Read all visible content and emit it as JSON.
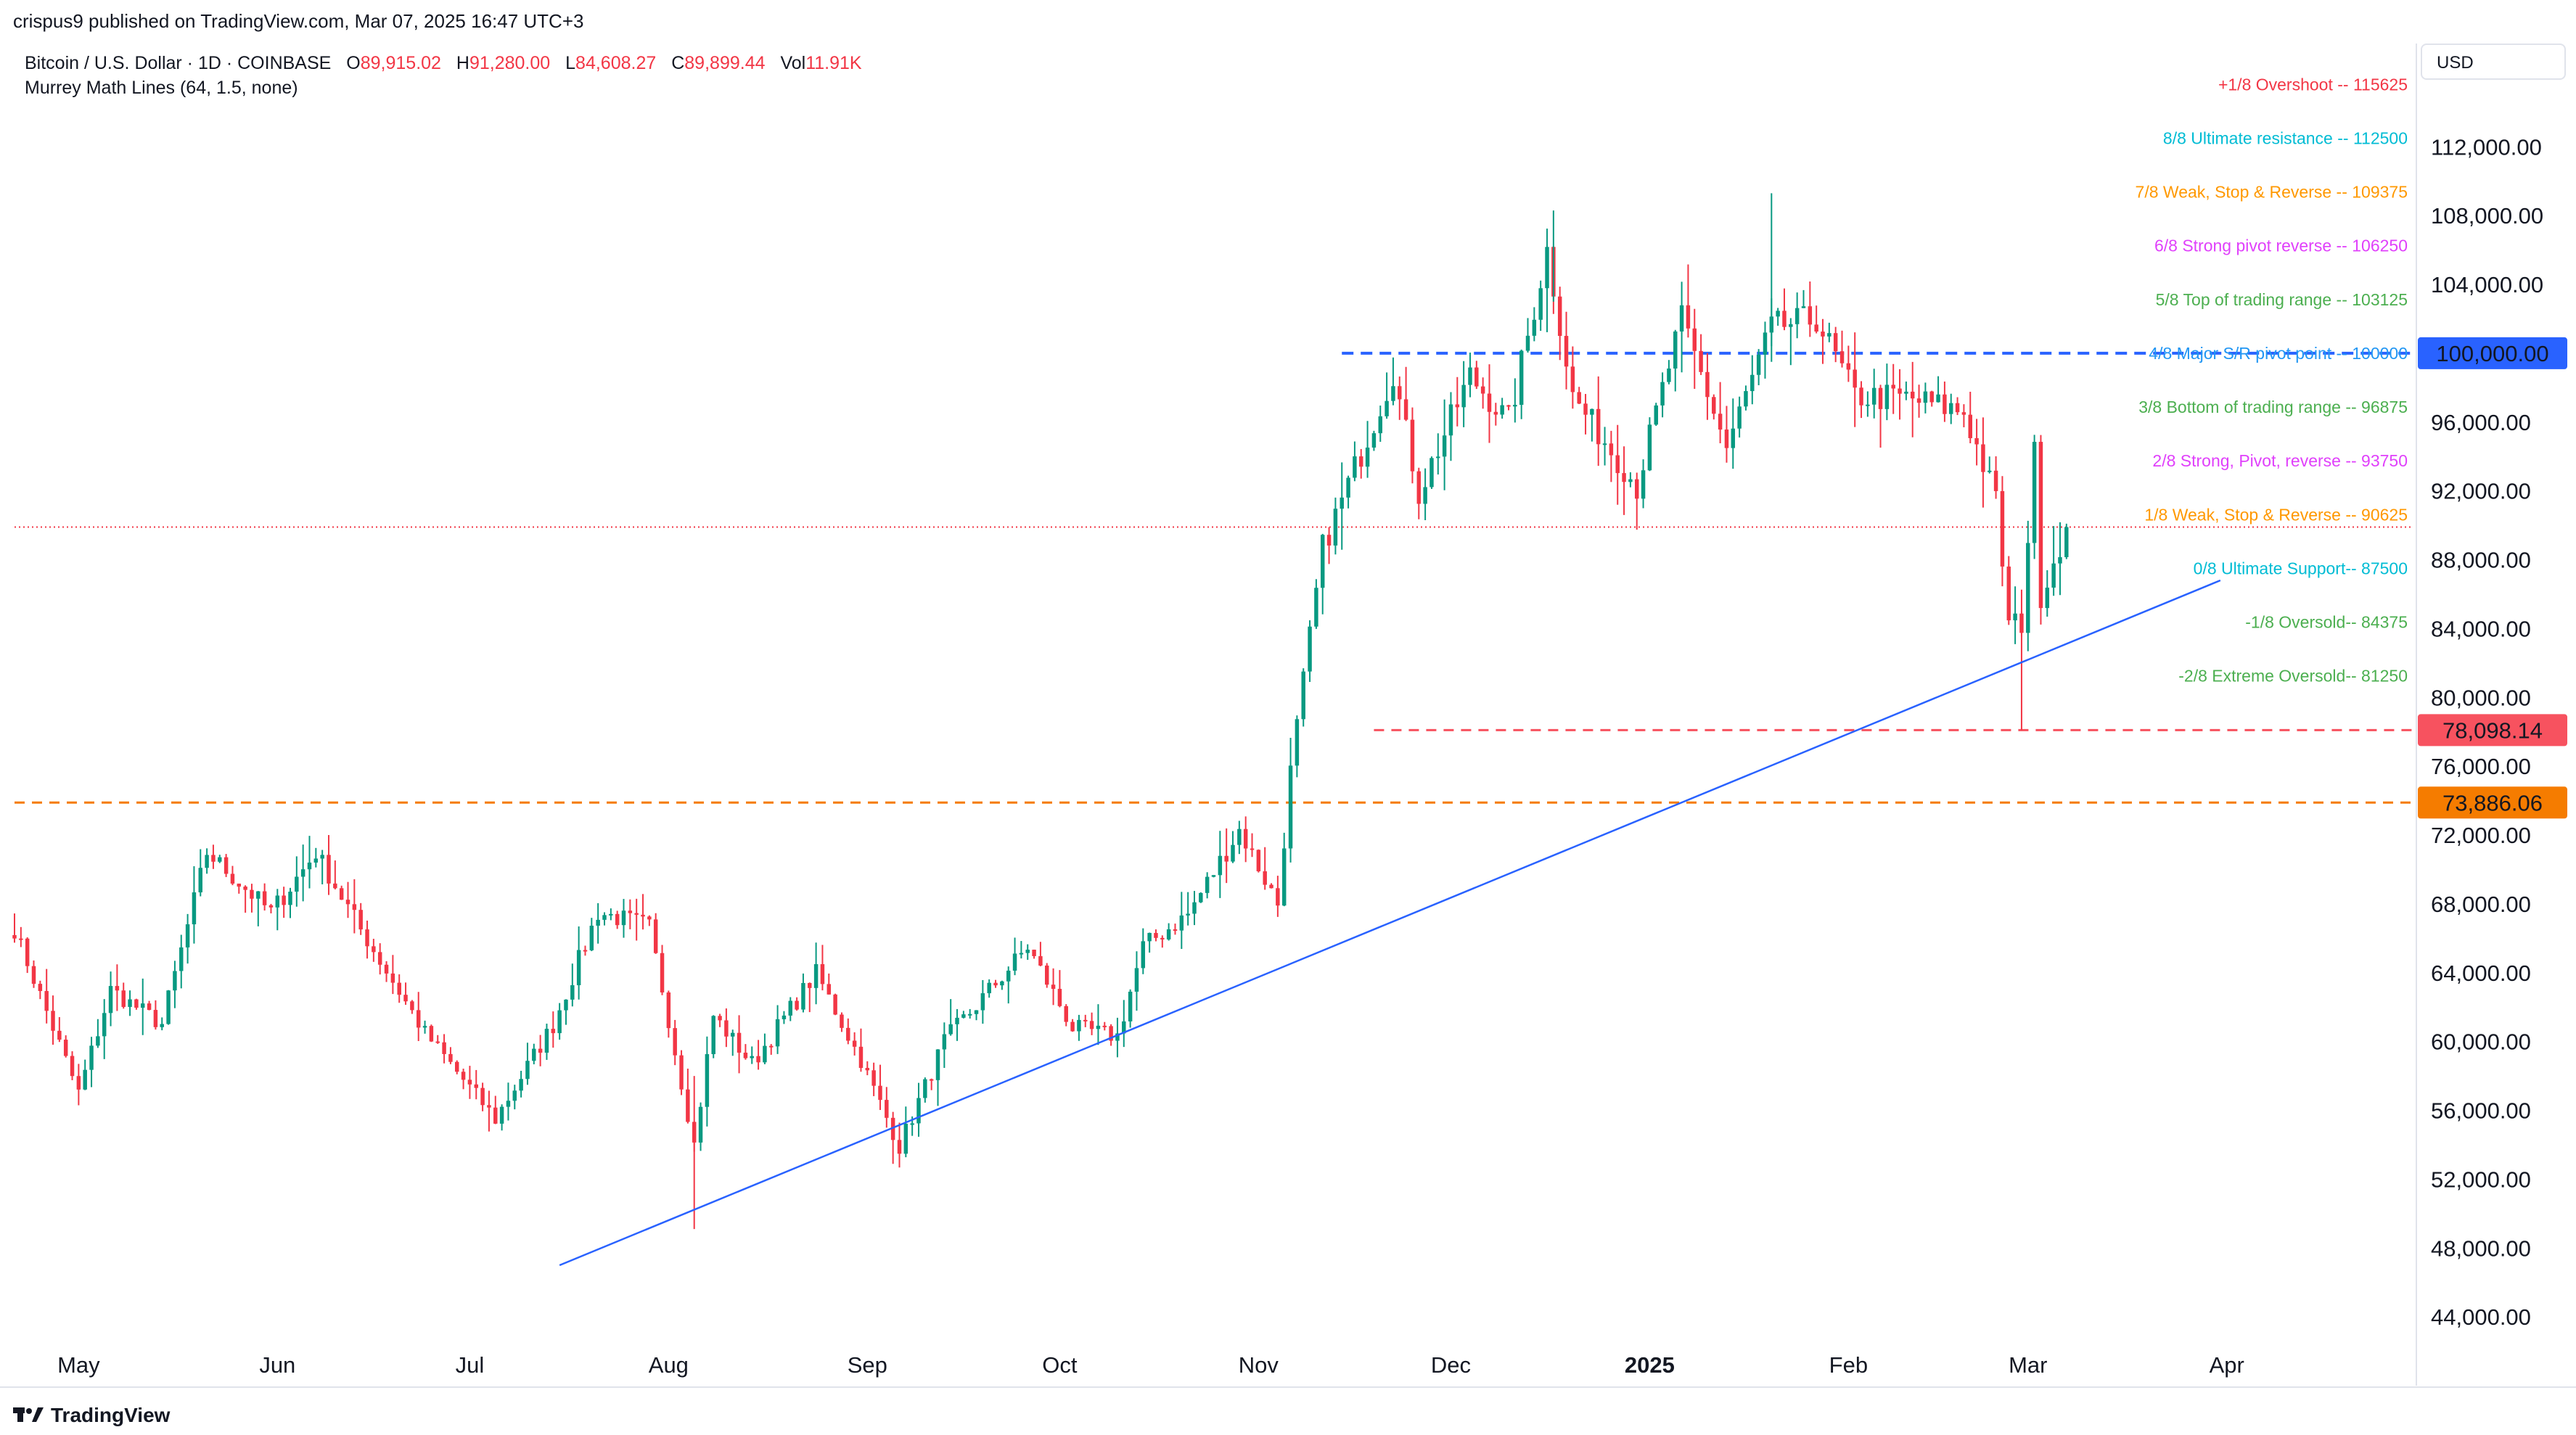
{
  "publisher": "crispus9 published on TradingView.com, Mar 07, 2025 16:47 UTC+3",
  "legend": {
    "symbol": "Bitcoin / U.S. Dollar · 1D · COINBASE",
    "open_label": "O",
    "open": "89,915.02",
    "high_label": "H",
    "high": "91,280.00",
    "low_label": "L",
    "low": "84,608.27",
    "close_label": "C",
    "close": "89,899.44",
    "vol_label": "Vol",
    "vol": "11.91K",
    "indicator": "Murrey Math Lines (64, 1.5, none)"
  },
  "currency": "USD",
  "footer": "TradingView",
  "colors": {
    "up": "#089981",
    "down": "#f23645",
    "trendline": "#2962ff",
    "price_line": "#f23645"
  },
  "chart_data": {
    "type": "candlestick",
    "title": "Bitcoin / U.S. Dollar · 1D · COINBASE",
    "ylim": [
      40000,
      118000
    ],
    "y_ticks": [
      "44,000.00",
      "48,000.00",
      "52,000.00",
      "56,000.00",
      "60,000.00",
      "64,000.00",
      "68,000.00",
      "72,000.00",
      "76,000.00",
      "80,000.00",
      "84,000.00",
      "88,000.00",
      "92,000.00",
      "96,000.00",
      "100,000.00",
      "104,000.00",
      "108,000.00",
      "112,000.00"
    ],
    "x_ticks": [
      "May",
      "Jun",
      "Jul",
      "Aug",
      "Sep",
      "Oct",
      "Nov",
      "Dec",
      "2025",
      "Feb",
      "Mar",
      "Apr"
    ],
    "murrey_lines": [
      {
        "label": "+1/8 Overshoot --  115625",
        "value": 115625,
        "color": "#f23645"
      },
      {
        "label": "8/8 Ultimate resistance --  112500",
        "value": 112500,
        "color": "#00bcd4"
      },
      {
        "label": "7/8 Weak, Stop & Reverse --  109375",
        "value": 109375,
        "color": "#ff9800"
      },
      {
        "label": "6/8 Strong pivot reverse --  106250",
        "value": 106250,
        "color": "#e040fb"
      },
      {
        "label": "5/8 Top of trading range --  103125",
        "value": 103125,
        "color": "#4caf50"
      },
      {
        "label": "4/8 Major S/R pivot point --  100000",
        "value": 100000,
        "color": "#2196f3"
      },
      {
        "label": "3/8 Bottom of trading range --  96875",
        "value": 96875,
        "color": "#4caf50"
      },
      {
        "label": "2/8 Strong, Pivot, reverse --  93750",
        "value": 93750,
        "color": "#e040fb"
      },
      {
        "label": "1/8 Weak, Stop & Reverse --  90625",
        "value": 90625,
        "color": "#ff9800"
      },
      {
        "label": "0/8 Ultimate Support--  87500",
        "value": 87500,
        "color": "#00bcd4"
      },
      {
        "label": "-1/8 Oversold--  84375",
        "value": 84375,
        "color": "#4caf50"
      },
      {
        "label": "-2/8 Extreme Oversold--  81250",
        "value": 81250,
        "color": "#4caf50"
      }
    ],
    "horizontal_levels": [
      {
        "value": 100000,
        "label": "100,000.00",
        "color": "#2962ff"
      },
      {
        "value": 78098.14,
        "label": "78,098.14",
        "color": "#f7525f"
      },
      {
        "value": 73886.06,
        "label": "73,886.06",
        "color": "#f57c00"
      }
    ],
    "current_price": 89899.44,
    "trendline": {
      "start": [
        "2024-07-15",
        47000
      ],
      "end": [
        "2025-03-31",
        86800
      ]
    },
    "x_range": [
      "2024-04-21",
      "2025-04-30"
    ],
    "anchors": [
      [
        "2024-04-21",
        66500
      ],
      [
        "2024-05-01",
        57000
      ],
      [
        "2024-05-06",
        63000
      ],
      [
        "2024-05-14",
        61000
      ],
      [
        "2024-05-21",
        71000
      ],
      [
        "2024-05-31",
        67500
      ],
      [
        "2024-06-07",
        71000
      ],
      [
        "2024-06-14",
        66500
      ],
      [
        "2024-06-24",
        60500
      ],
      [
        "2024-07-05",
        55500
      ],
      [
        "2024-07-14",
        61000
      ],
      [
        "2024-07-21",
        67500
      ],
      [
        "2024-07-29",
        66700
      ],
      [
        "2024-08-05",
        54000
      ],
      [
        "2024-08-08",
        61500
      ],
      [
        "2024-08-14",
        58700
      ],
      [
        "2024-08-24",
        64000
      ],
      [
        "2024-08-31",
        58900
      ],
      [
        "2024-09-06",
        53900
      ],
      [
        "2024-09-13",
        60000
      ],
      [
        "2024-09-26",
        65500
      ],
      [
        "2024-10-03",
        60800
      ],
      [
        "2024-10-10",
        60300
      ],
      [
        "2024-10-14",
        65500
      ],
      [
        "2024-10-21",
        67400
      ],
      [
        "2024-10-29",
        72300
      ],
      [
        "2024-11-04",
        68000
      ],
      [
        "2024-11-06",
        75600
      ],
      [
        "2024-11-11",
        88700
      ],
      [
        "2024-11-13",
        90500
      ],
      [
        "2024-11-22",
        98900
      ],
      [
        "2024-11-26",
        91900
      ],
      [
        "2024-12-04",
        98700
      ],
      [
        "2024-12-10",
        96000
      ],
      [
        "2024-12-16",
        106000
      ],
      [
        "2024-12-20",
        97500
      ],
      [
        "2024-12-30",
        92300
      ],
      [
        "2025-01-06",
        102000
      ],
      [
        "2025-01-13",
        94500
      ],
      [
        "2025-01-20",
        101500
      ],
      [
        "2025-01-27",
        102000
      ],
      [
        "2025-02-02",
        97500
      ],
      [
        "2025-02-10",
        97400
      ],
      [
        "2025-02-19",
        96600
      ],
      [
        "2025-02-24",
        91500
      ],
      [
        "2025-02-26",
        84200
      ],
      [
        "2025-02-28",
        84400
      ],
      [
        "2025-03-02",
        94200
      ],
      [
        "2025-03-03",
        86000
      ],
      [
        "2025-03-07",
        89899
      ]
    ]
  }
}
